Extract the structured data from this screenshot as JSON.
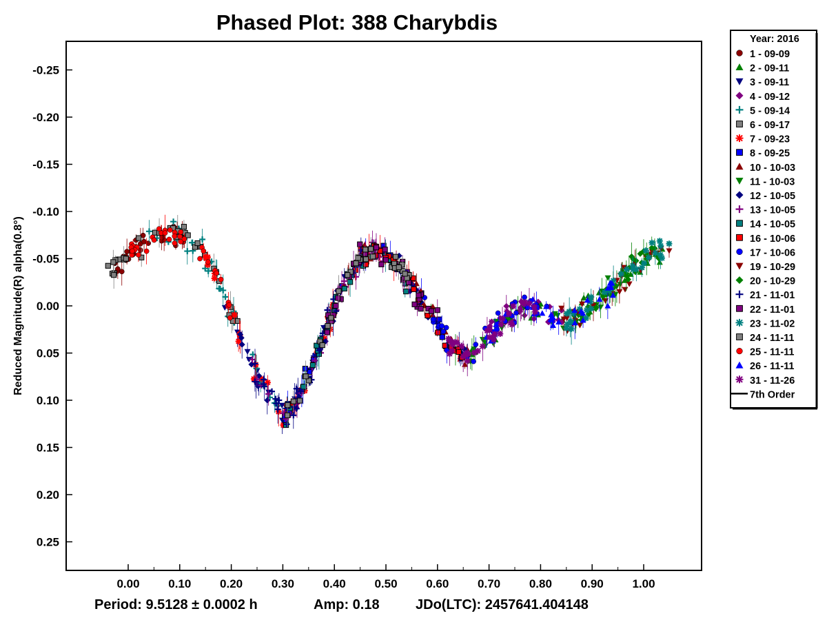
{
  "chart_data": {
    "type": "scatter",
    "title": "Phased Plot: 388 Charybdis",
    "xlabel": "",
    "ylabel": "Reduced Magnitude(R) alpha(0.8°)",
    "xlim": [
      -0.12,
      1.12
    ],
    "ylim": [
      -0.28,
      0.28
    ],
    "y_inverted": true,
    "x_ticks": [
      "0.00",
      "0.10",
      "0.20",
      "0.30",
      "0.40",
      "0.50",
      "0.60",
      "0.70",
      "0.80",
      "0.90",
      "1.00"
    ],
    "y_ticks": [
      "-0.25",
      "-0.20",
      "-0.15",
      "-0.10",
      "-0.05",
      "0.00",
      "0.05",
      "0.10",
      "0.15",
      "0.20",
      "0.25"
    ],
    "grid": false,
    "legend_position": "right",
    "legend_title": "Year: 2016",
    "series": [
      {
        "name": "1 - 09-09",
        "marker": "circle",
        "color": "#8b0000"
      },
      {
        "name": "2 - 09-11",
        "marker": "triangle-up",
        "color": "#008000"
      },
      {
        "name": "3 - 09-11",
        "marker": "triangle-down",
        "color": "#000080"
      },
      {
        "name": "4 - 09-12",
        "marker": "diamond",
        "color": "#800080"
      },
      {
        "name": "5 - 09-14",
        "marker": "plus",
        "color": "#008080"
      },
      {
        "name": "6 - 09-17",
        "marker": "square",
        "color": "#808080"
      },
      {
        "name": "7 - 09-23",
        "marker": "asterisk",
        "color": "#ff0000"
      },
      {
        "name": "8 - 09-25",
        "marker": "square",
        "color": "#0000ff"
      },
      {
        "name": "10 - 10-03",
        "marker": "triangle-up",
        "color": "#8b0000"
      },
      {
        "name": "11 - 10-03",
        "marker": "triangle-down",
        "color": "#008000"
      },
      {
        "name": "12 - 10-05",
        "marker": "diamond",
        "color": "#000080"
      },
      {
        "name": "13 - 10-05",
        "marker": "plus",
        "color": "#800080"
      },
      {
        "name": "14 - 10-05",
        "marker": "square",
        "color": "#008080"
      },
      {
        "name": "16 - 10-06",
        "marker": "square",
        "color": "#ff0000"
      },
      {
        "name": "17 - 10-06",
        "marker": "circle",
        "color": "#0000ff"
      },
      {
        "name": "19 - 10-29",
        "marker": "triangle-down",
        "color": "#8b0000"
      },
      {
        "name": "20 - 10-29",
        "marker": "diamond",
        "color": "#008000"
      },
      {
        "name": "21 - 11-01",
        "marker": "plus",
        "color": "#000080"
      },
      {
        "name": "22 - 11-01",
        "marker": "square",
        "color": "#800080"
      },
      {
        "name": "23 - 11-02",
        "marker": "asterisk",
        "color": "#008080"
      },
      {
        "name": "24 - 11-11",
        "marker": "square",
        "color": "#808080"
      },
      {
        "name": "25 - 11-11",
        "marker": "circle",
        "color": "#ff0000"
      },
      {
        "name": "26 - 11-11",
        "marker": "triangle-up",
        "color": "#0000ff"
      },
      {
        "name": "31 - 11-26",
        "marker": "asterisk",
        "color": "#800080"
      },
      {
        "name": "7th Order",
        "marker": "line",
        "color": "#000000"
      }
    ],
    "lightcurve": {
      "phase": [
        -0.05,
        -0.02,
        0.0,
        0.03,
        0.06,
        0.09,
        0.12,
        0.15,
        0.18,
        0.21,
        0.24,
        0.27,
        0.3,
        0.33,
        0.36,
        0.39,
        0.42,
        0.45,
        0.48,
        0.51,
        0.54,
        0.57,
        0.6,
        0.63,
        0.66,
        0.69,
        0.72,
        0.75,
        0.78,
        0.81,
        0.84,
        0.87,
        0.9,
        0.93,
        0.96,
        0.99,
        1.02,
        1.05
      ],
      "mag": [
        -0.035,
        -0.045,
        -0.055,
        -0.065,
        -0.075,
        -0.078,
        -0.07,
        -0.05,
        -0.02,
        0.02,
        0.06,
        0.095,
        0.115,
        0.1,
        0.06,
        0.015,
        -0.025,
        -0.05,
        -0.06,
        -0.05,
        -0.03,
        -0.005,
        0.02,
        0.045,
        0.055,
        0.04,
        0.02,
        0.005,
        0.0,
        0.005,
        0.015,
        0.01,
        0.0,
        -0.015,
        -0.03,
        -0.045,
        -0.055,
        -0.065
      ]
    }
  },
  "footer": {
    "period": "Period: 9.5128 ± 0.0002 h",
    "amp": "Amp: 0.18",
    "jd": "JDo(LTC): 2457641.404148"
  }
}
